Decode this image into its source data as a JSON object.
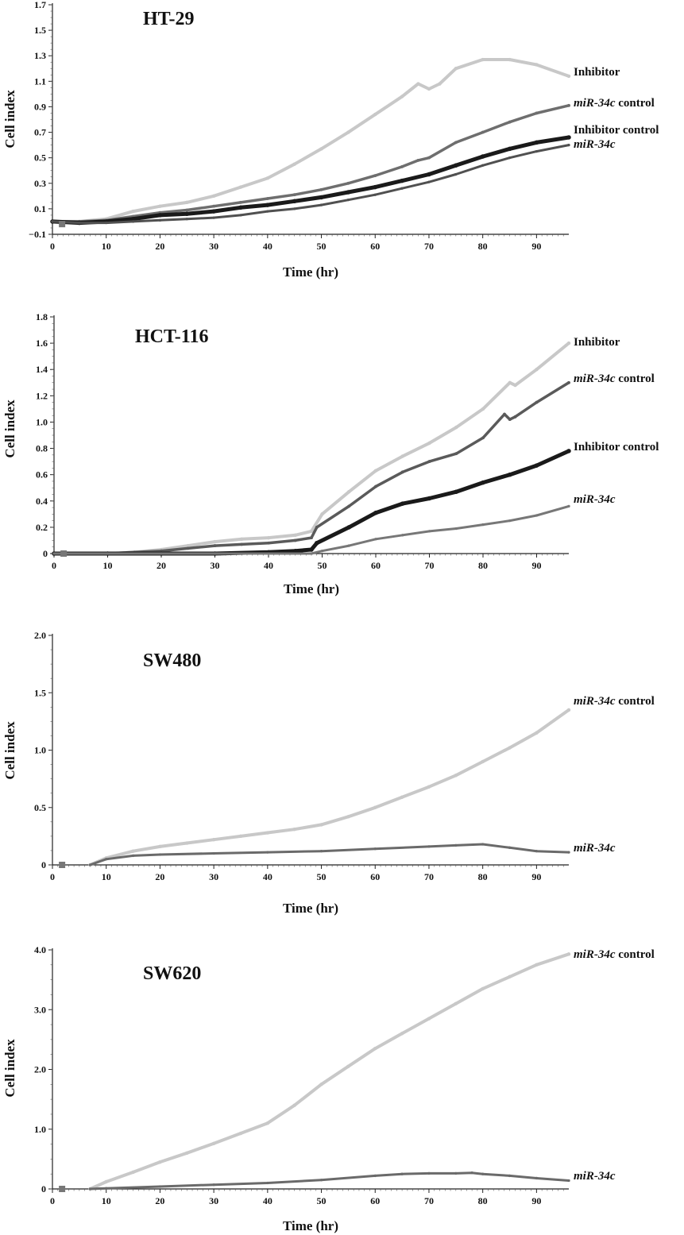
{
  "chart_data": [
    {
      "type": "line",
      "title": "HT-29",
      "xlabel": "Time (hr)",
      "ylabel": "Cell index",
      "xlim": [
        0,
        96
      ],
      "ylim": [
        -0.1,
        1.7
      ],
      "xticks": [
        "0",
        "10",
        "20",
        "30",
        "40",
        "50",
        "60",
        "70",
        "80",
        "90"
      ],
      "yticks": [
        "−0.1",
        "0.1",
        "0.3",
        "0.5",
        "0.7",
        "0.9",
        "1.1",
        "1.3",
        "1.5",
        "1.7"
      ],
      "grid": false,
      "series": [
        {
          "name": "Inhibitor",
          "name_italic": "",
          "name_rest": "Inhibitor",
          "color": "#c8c8c8",
          "width": 4,
          "x": [
            0,
            5,
            10,
            15,
            20,
            25,
            30,
            35,
            40,
            45,
            50,
            55,
            60,
            65,
            68,
            70,
            72,
            75,
            80,
            85,
            90,
            96
          ],
          "y": [
            0,
            0.0,
            0.02,
            0.08,
            0.12,
            0.15,
            0.2,
            0.27,
            0.34,
            0.45,
            0.57,
            0.7,
            0.84,
            0.98,
            1.08,
            1.04,
            1.08,
            1.2,
            1.27,
            1.27,
            1.23,
            1.14
          ]
        },
        {
          "name": "miR-34c control",
          "name_italic": "miR-34c",
          "name_rest": " control",
          "color": "#6e6e6e",
          "width": 3.5,
          "x": [
            0,
            5,
            10,
            15,
            20,
            25,
            30,
            35,
            40,
            45,
            50,
            55,
            60,
            65,
            68,
            70,
            75,
            80,
            85,
            90,
            96
          ],
          "y": [
            0,
            0.0,
            0.01,
            0.04,
            0.07,
            0.09,
            0.12,
            0.15,
            0.18,
            0.21,
            0.25,
            0.3,
            0.36,
            0.43,
            0.48,
            0.5,
            0.62,
            0.7,
            0.78,
            0.85,
            0.91
          ]
        },
        {
          "name": "Inhibitor control",
          "name_italic": "",
          "name_rest": "Inhibitor control",
          "color": "#1a1a1a",
          "width": 5,
          "x": [
            0,
            5,
            10,
            15,
            20,
            25,
            30,
            35,
            40,
            45,
            50,
            55,
            60,
            65,
            70,
            75,
            80,
            85,
            90,
            96
          ],
          "y": [
            0,
            -0.01,
            0.0,
            0.02,
            0.05,
            0.06,
            0.08,
            0.11,
            0.13,
            0.16,
            0.19,
            0.23,
            0.27,
            0.32,
            0.37,
            0.44,
            0.51,
            0.57,
            0.62,
            0.66
          ]
        },
        {
          "name": "miR-34c",
          "name_italic": "miR-34c",
          "name_rest": "",
          "color": "#505050",
          "width": 3,
          "x": [
            0,
            5,
            10,
            15,
            20,
            25,
            30,
            35,
            40,
            45,
            50,
            55,
            60,
            65,
            70,
            75,
            80,
            85,
            90,
            96
          ],
          "y": [
            0,
            -0.01,
            -0.01,
            0.0,
            0.01,
            0.02,
            0.03,
            0.05,
            0.08,
            0.1,
            0.13,
            0.17,
            0.21,
            0.26,
            0.31,
            0.37,
            0.44,
            0.5,
            0.55,
            0.6
          ]
        }
      ]
    },
    {
      "type": "line",
      "title": "HCT-116",
      "xlabel": "Time (hr)",
      "ylabel": "Cell index",
      "xlim": [
        0,
        96
      ],
      "ylim": [
        0,
        1.8
      ],
      "xticks": [
        "0",
        "10",
        "20",
        "30",
        "40",
        "50",
        "60",
        "70",
        "80",
        "90"
      ],
      "yticks": [
        "0",
        "0.2",
        "0.4",
        "0.6",
        "0.8",
        "1.0",
        "1.2",
        "1.4",
        "1.6",
        "1.8"
      ],
      "grid": false,
      "series": [
        {
          "name": "Inhibitor",
          "name_italic": "",
          "name_rest": "Inhibitor",
          "color": "#c8c8c8",
          "width": 4,
          "x": [
            0,
            10,
            15,
            20,
            25,
            30,
            35,
            40,
            45,
            48,
            50,
            55,
            60,
            65,
            70,
            75,
            80,
            85,
            86,
            90,
            96
          ],
          "y": [
            0,
            0.0,
            0.01,
            0.03,
            0.06,
            0.09,
            0.11,
            0.12,
            0.14,
            0.17,
            0.3,
            0.47,
            0.63,
            0.74,
            0.84,
            0.96,
            1.1,
            1.3,
            1.28,
            1.4,
            1.6
          ]
        },
        {
          "name": "miR-34c control",
          "name_italic": "miR-34c",
          "name_rest": " control",
          "color": "#5a5a5a",
          "width": 3.5,
          "x": [
            0,
            10,
            15,
            20,
            25,
            30,
            35,
            40,
            45,
            48,
            49,
            55,
            60,
            65,
            70,
            75,
            80,
            84,
            85,
            86,
            90,
            96
          ],
          "y": [
            0,
            0.0,
            0.01,
            0.02,
            0.04,
            0.06,
            0.07,
            0.08,
            0.1,
            0.12,
            0.2,
            0.36,
            0.51,
            0.62,
            0.7,
            0.76,
            0.88,
            1.06,
            1.02,
            1.04,
            1.15,
            1.3
          ]
        },
        {
          "name": "Inhibitor control",
          "name_italic": "",
          "name_rest": "Inhibitor control",
          "color": "#1a1a1a",
          "width": 5,
          "x": [
            0,
            10,
            20,
            30,
            40,
            45,
            48,
            49,
            55,
            60,
            65,
            70,
            75,
            80,
            85,
            90,
            96
          ],
          "y": [
            0,
            0.0,
            0.0,
            0.0,
            0.01,
            0.02,
            0.03,
            0.08,
            0.2,
            0.31,
            0.38,
            0.42,
            0.47,
            0.54,
            0.6,
            0.67,
            0.78
          ]
        },
        {
          "name": "miR-34c",
          "name_italic": "miR-34c",
          "name_rest": "",
          "color": "#777777",
          "width": 3,
          "x": [
            0,
            10,
            20,
            30,
            40,
            48,
            50,
            55,
            60,
            65,
            70,
            75,
            80,
            85,
            90,
            96
          ],
          "y": [
            0,
            0.0,
            0.0,
            0.0,
            0.0,
            0.0,
            0.02,
            0.06,
            0.11,
            0.14,
            0.17,
            0.19,
            0.22,
            0.25,
            0.29,
            0.36
          ]
        }
      ]
    },
    {
      "type": "line",
      "title": "SW480",
      "xlabel": "Time (hr)",
      "ylabel": "Cell index",
      "xlim": [
        0,
        96
      ],
      "ylim": [
        0,
        2.0
      ],
      "xticks": [
        "0",
        "10",
        "20",
        "30",
        "40",
        "50",
        "60",
        "70",
        "80",
        "90"
      ],
      "yticks": [
        "0",
        "0.5",
        "1.0",
        "1.5",
        "2.0"
      ],
      "grid": false,
      "series": [
        {
          "name": "miR-34c control",
          "name_italic": "miR-34c",
          "name_rest": " control",
          "color": "#c8c8c8",
          "width": 4,
          "x": [
            7,
            10,
            15,
            20,
            25,
            30,
            35,
            40,
            45,
            50,
            55,
            60,
            65,
            70,
            75,
            80,
            85,
            90,
            96
          ],
          "y": [
            0,
            0.06,
            0.12,
            0.16,
            0.19,
            0.22,
            0.25,
            0.28,
            0.31,
            0.35,
            0.42,
            0.5,
            0.59,
            0.68,
            0.78,
            0.9,
            1.02,
            1.15,
            1.35
          ]
        },
        {
          "name": "miR-34c",
          "name_italic": "miR-34c",
          "name_rest": "",
          "color": "#6a6a6a",
          "width": 3,
          "x": [
            7,
            10,
            15,
            20,
            30,
            40,
            50,
            60,
            70,
            75,
            80,
            85,
            90,
            96
          ],
          "y": [
            0,
            0.05,
            0.08,
            0.09,
            0.1,
            0.11,
            0.12,
            0.14,
            0.16,
            0.17,
            0.18,
            0.15,
            0.12,
            0.11
          ]
        }
      ]
    },
    {
      "type": "line",
      "title": "SW620",
      "xlabel": "Time (hr)",
      "ylabel": "Cell index",
      "xlim": [
        0,
        96
      ],
      "ylim": [
        0,
        4.0
      ],
      "xticks": [
        "0",
        "10",
        "20",
        "30",
        "40",
        "50",
        "60",
        "70",
        "80",
        "90"
      ],
      "yticks": [
        "0",
        "1.0",
        "2.0",
        "3.0",
        "4.0"
      ],
      "grid": false,
      "series": [
        {
          "name": "miR-34c control",
          "name_italic": "miR-34c",
          "name_rest": " control",
          "color": "#c8c8c8",
          "width": 4,
          "x": [
            7,
            10,
            15,
            20,
            25,
            30,
            35,
            40,
            45,
            50,
            55,
            60,
            65,
            70,
            75,
            80,
            85,
            90,
            96
          ],
          "y": [
            0,
            0.12,
            0.28,
            0.45,
            0.6,
            0.76,
            0.93,
            1.1,
            1.4,
            1.75,
            2.05,
            2.35,
            2.6,
            2.85,
            3.1,
            3.35,
            3.55,
            3.75,
            3.93
          ]
        },
        {
          "name": "miR-34c",
          "name_italic": "miR-34c",
          "name_rest": "",
          "color": "#6a6a6a",
          "width": 3,
          "x": [
            7,
            10,
            20,
            30,
            40,
            50,
            60,
            65,
            70,
            75,
            78,
            80,
            85,
            90,
            96
          ],
          "y": [
            0,
            0.01,
            0.04,
            0.07,
            0.1,
            0.15,
            0.22,
            0.25,
            0.26,
            0.26,
            0.27,
            0.25,
            0.22,
            0.18,
            0.14
          ]
        }
      ]
    }
  ]
}
